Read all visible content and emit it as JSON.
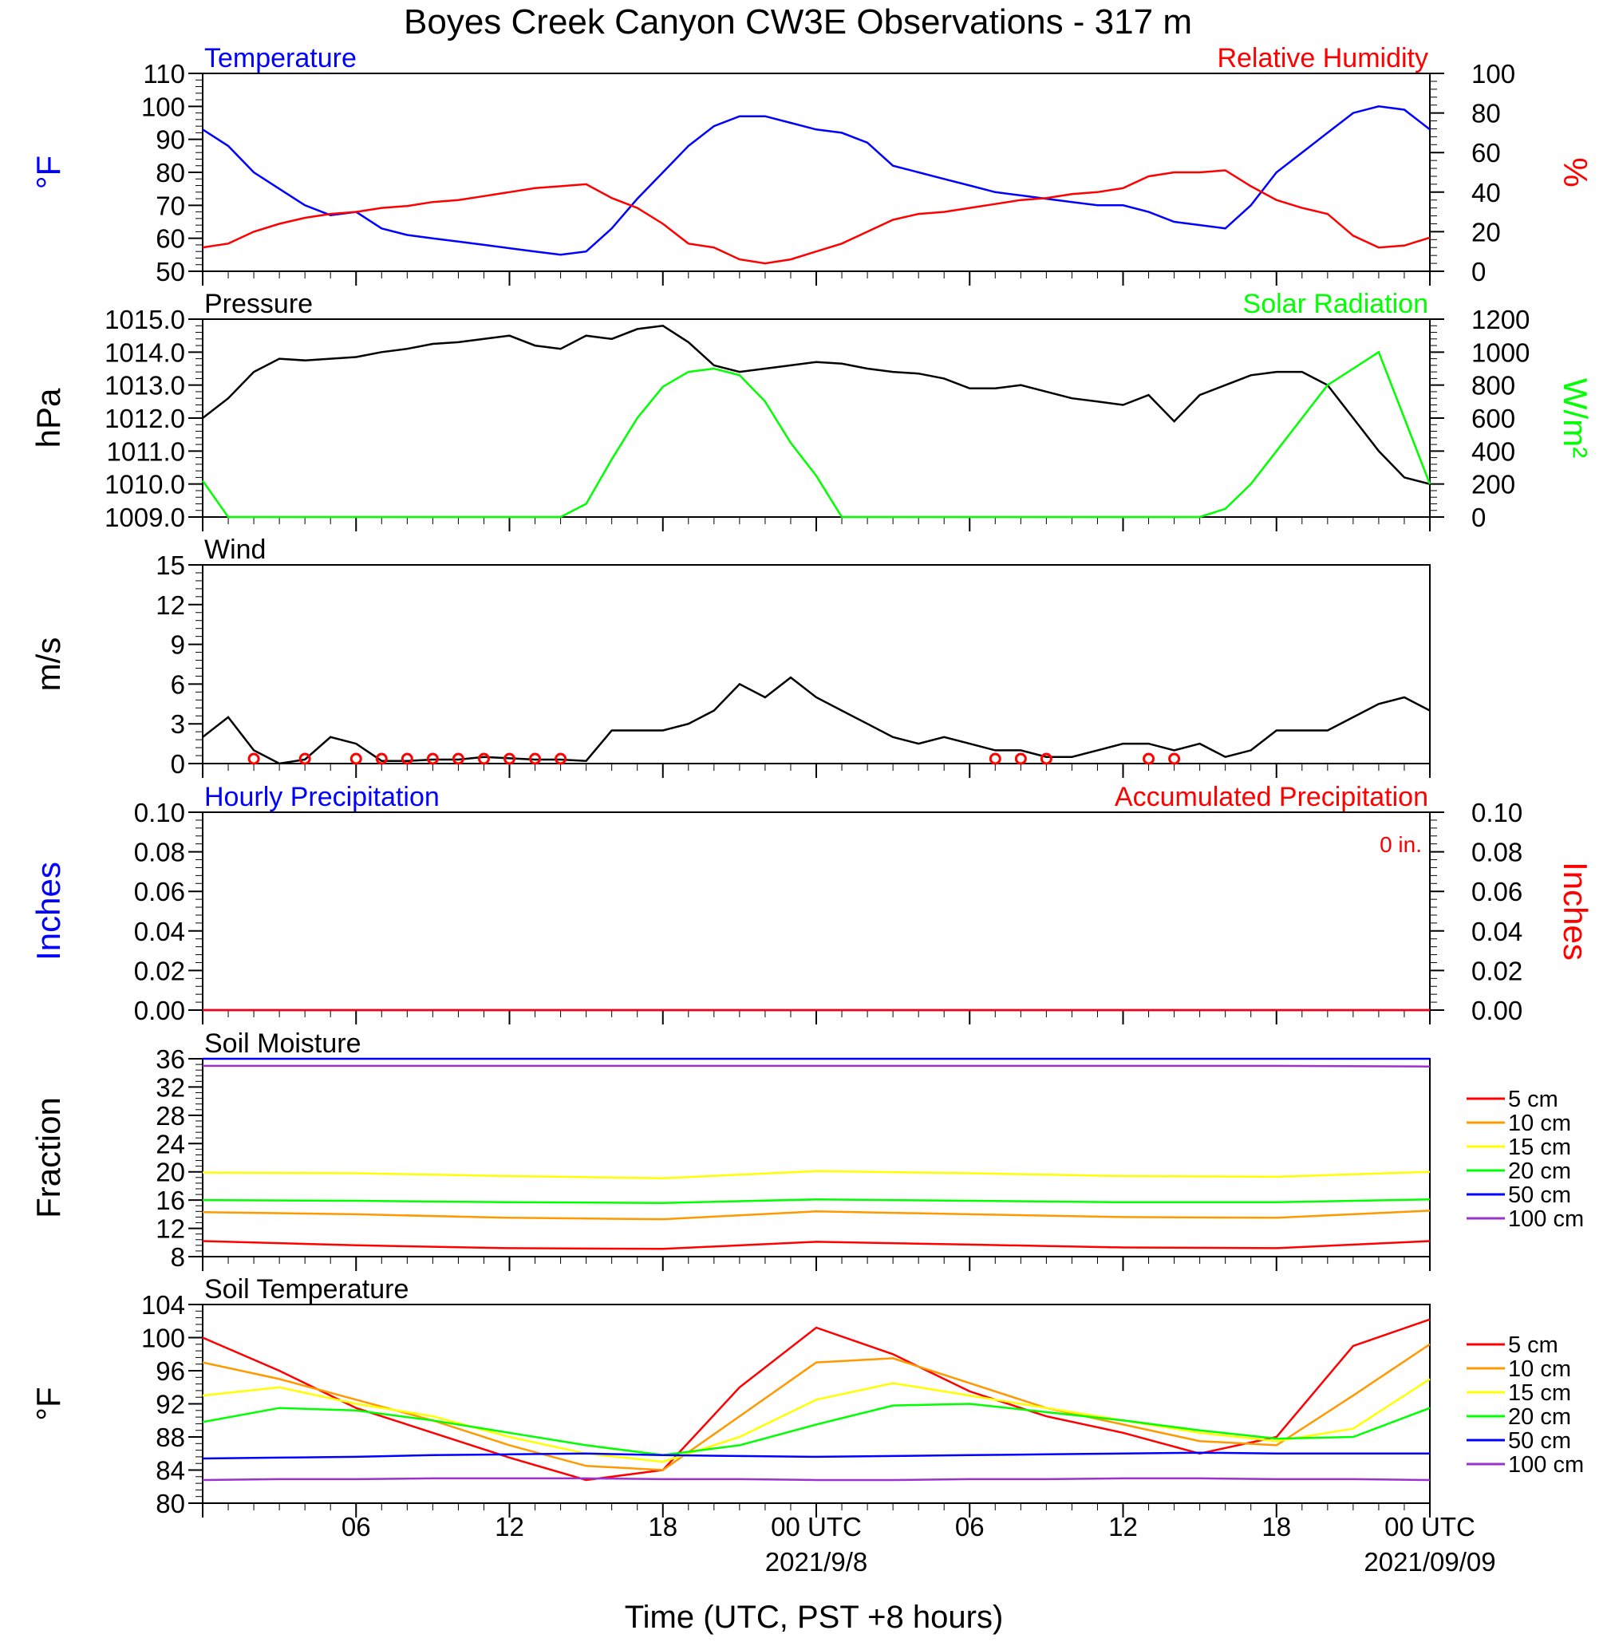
{
  "title": "Boyes Creek Canyon CW3E Observations - 317 m",
  "xlabel": "Time (UTC, PST +8 hours)",
  "x_ticks": [
    "06",
    "12",
    "18",
    "00 UTC",
    "06",
    "12",
    "18",
    "00 UTC"
  ],
  "x_dates": [
    "2021/9/8",
    "2021/09/09"
  ],
  "chart_data": [
    {
      "type": "line",
      "left_title": "Temperature",
      "right_title": "Relative Humidity",
      "ylabel_left": "°F",
      "ylabel_right": "%",
      "ylim_left": [
        50,
        110
      ],
      "ylim_right": [
        0,
        100
      ],
      "yticks_left": [
        "110",
        "100",
        "90",
        "80",
        "70",
        "60",
        "50"
      ],
      "yticks_right": [
        "100",
        "80",
        "60",
        "40",
        "20",
        "0"
      ],
      "x_hours": [
        0,
        1,
        2,
        3,
        4,
        5,
        6,
        7,
        8,
        9,
        10,
        11,
        12,
        13,
        14,
        15,
        16,
        17,
        18,
        19,
        20,
        21,
        22,
        23,
        24,
        25,
        26,
        27,
        28,
        29,
        30,
        31,
        32,
        33,
        34,
        35,
        36,
        37,
        38,
        39,
        40,
        41,
        42,
        43,
        44,
        45,
        46,
        47,
        48
      ],
      "series": [
        {
          "axis": "left",
          "color": "#0000ff",
          "values": [
            93,
            88,
            80,
            75,
            70,
            67,
            68,
            63,
            61,
            60,
            59,
            58,
            57,
            56,
            55,
            56,
            63,
            72,
            80,
            88,
            94,
            97,
            97,
            95,
            93,
            92,
            89,
            82,
            80,
            78,
            76,
            74,
            73,
            72,
            71,
            70,
            70,
            68,
            65,
            64,
            63,
            70,
            80,
            86,
            92,
            98,
            100,
            99,
            93
          ]
        },
        {
          "axis": "right",
          "color": "#ff0000",
          "values": [
            12,
            14,
            20,
            24,
            27,
            29,
            30,
            32,
            33,
            35,
            36,
            38,
            40,
            42,
            43,
            44,
            37,
            32,
            24,
            14,
            12,
            6,
            4,
            6,
            10,
            14,
            20,
            26,
            29,
            30,
            32,
            34,
            36,
            37,
            39,
            40,
            42,
            48,
            50,
            50,
            51,
            43,
            36,
            32,
            29,
            18,
            12,
            13,
            17
          ]
        }
      ]
    },
    {
      "type": "line",
      "left_title": "Pressure",
      "right_title": "Solar Radiation",
      "ylabel_left": "hPa",
      "ylabel_right": "W/m²",
      "ylim_left": [
        1009,
        1015
      ],
      "ylim_right": [
        0,
        1200
      ],
      "yticks_left": [
        "1015.0",
        "1014.0",
        "1013.0",
        "1012.0",
        "1011.0",
        "1010.0",
        "1009.0"
      ],
      "yticks_right": [
        "1200",
        "1000",
        "800",
        "600",
        "400",
        "200",
        "0"
      ],
      "x_hours": [
        0,
        1,
        2,
        3,
        4,
        5,
        6,
        7,
        8,
        9,
        10,
        11,
        12,
        13,
        14,
        15,
        16,
        17,
        18,
        19,
        20,
        21,
        22,
        23,
        24,
        25,
        26,
        27,
        28,
        29,
        30,
        31,
        32,
        33,
        34,
        35,
        36,
        37,
        38,
        39,
        40,
        41,
        42,
        43,
        44,
        45,
        46,
        47,
        48
      ],
      "series": [
        {
          "axis": "left",
          "color": "#000000",
          "values": [
            1012.0,
            1012.6,
            1013.4,
            1013.8,
            1013.75,
            1013.8,
            1013.85,
            1014.0,
            1014.1,
            1014.25,
            1014.3,
            1014.4,
            1014.5,
            1014.2,
            1014.1,
            1014.5,
            1014.4,
            1014.7,
            1014.8,
            1014.3,
            1013.6,
            1013.4,
            1013.5,
            1013.6,
            1013.7,
            1013.65,
            1013.5,
            1013.4,
            1013.35,
            1013.2,
            1012.9,
            1012.9,
            1013.0,
            1012.8,
            1012.6,
            1012.5,
            1012.4,
            1012.7,
            1011.9,
            1012.7,
            1013.0,
            1013.3,
            1013.4,
            1013.4,
            1013.0,
            1012.0,
            1011.0,
            1010.2,
            1010.0
          ]
        },
        {
          "axis": "right",
          "color": "#00ff00",
          "values": [
            220,
            0,
            0,
            0,
            0,
            0,
            0,
            0,
            0,
            0,
            0,
            0,
            0,
            0,
            0,
            80,
            350,
            600,
            790,
            880,
            900,
            860,
            700,
            450,
            250,
            0,
            0,
            0,
            0,
            0,
            0,
            0,
            0,
            0,
            0,
            0,
            0,
            0,
            0,
            0,
            50,
            200,
            400,
            600,
            800,
            900,
            1000,
            600,
            200
          ]
        }
      ]
    },
    {
      "type": "line",
      "left_title": "Wind",
      "ylabel_left": "m/s",
      "ylim_left": [
        0,
        15
      ],
      "yticks_left": [
        "15",
        "12",
        "9",
        "6",
        "3",
        "0"
      ],
      "x_hours": [
        0,
        1,
        2,
        3,
        4,
        5,
        6,
        7,
        8,
        9,
        10,
        11,
        12,
        13,
        14,
        15,
        16,
        17,
        18,
        19,
        20,
        21,
        22,
        23,
        24,
        25,
        26,
        27,
        28,
        29,
        30,
        31,
        32,
        33,
        34,
        35,
        36,
        37,
        38,
        39,
        40,
        41,
        42,
        43,
        44,
        45,
        46,
        47,
        48
      ],
      "series": [
        {
          "axis": "left",
          "color": "#000000",
          "values": [
            2,
            3.5,
            1,
            0,
            0.3,
            2,
            1.5,
            0.2,
            0.2,
            0.3,
            0.3,
            0.5,
            0.4,
            0.3,
            0.3,
            0.2,
            2.5,
            2.5,
            2.5,
            3,
            4,
            6,
            5,
            6.5,
            5,
            4,
            3,
            2,
            1.5,
            2,
            1.5,
            1,
            1,
            0.5,
            0.5,
            1,
            1.5,
            1.5,
            1,
            1.5,
            0.5,
            1,
            2.5,
            2.5,
            2.5,
            3.5,
            4.5,
            5,
            4
          ]
        }
      ],
      "calm_hours": [
        2,
        4,
        6,
        7,
        8,
        9,
        10,
        11,
        12,
        13,
        14,
        31,
        32,
        33,
        37,
        38
      ]
    },
    {
      "type": "line",
      "left_title": "Hourly Precipitation",
      "right_title": "Accumulated Precipitation",
      "annotation": "0 in.",
      "ylabel_left": "Inches",
      "ylabel_right": "Inches",
      "ylim_left": [
        0,
        0.1
      ],
      "ylim_right": [
        0,
        0.1
      ],
      "yticks_left": [
        "0.10",
        "0.08",
        "0.06",
        "0.04",
        "0.02",
        "0.00"
      ],
      "yticks_right": [
        "0.10",
        "0.08",
        "0.06",
        "0.04",
        "0.02",
        "0.00"
      ],
      "x_hours": [
        0,
        48
      ],
      "series": [
        {
          "axis": "left",
          "color": "#0000ff",
          "values": [
            0,
            0
          ]
        },
        {
          "axis": "right",
          "color": "#ff0000",
          "values": [
            0,
            0
          ]
        }
      ]
    },
    {
      "type": "line",
      "left_title": "Soil Moisture",
      "ylabel_left": "Fraction",
      "ylim_left": [
        8,
        36
      ],
      "yticks_left": [
        "36",
        "32",
        "28",
        "24",
        "20",
        "16",
        "12",
        "8"
      ],
      "legend": [
        "5 cm",
        "10 cm",
        "15 cm",
        "20 cm",
        "50 cm",
        "100 cm"
      ],
      "x_hours": [
        0,
        6,
        12,
        18,
        24,
        30,
        36,
        42,
        48
      ],
      "series": [
        {
          "name": "5 cm",
          "color": "#ff0000",
          "values": [
            10.2,
            9.6,
            9.2,
            9.1,
            10.1,
            9.7,
            9.3,
            9.2,
            10.2
          ]
        },
        {
          "name": "10 cm",
          "color": "#ff9900",
          "values": [
            14.3,
            14.0,
            13.5,
            13.3,
            14.4,
            14.0,
            13.6,
            13.5,
            14.5
          ]
        },
        {
          "name": "15 cm",
          "color": "#ffff00",
          "values": [
            19.9,
            19.8,
            19.4,
            19.1,
            20.1,
            19.8,
            19.4,
            19.3,
            20.0
          ]
        },
        {
          "name": "20 cm",
          "color": "#00ff00",
          "values": [
            16.0,
            15.9,
            15.7,
            15.6,
            16.1,
            15.9,
            15.7,
            15.7,
            16.1
          ]
        },
        {
          "name": "50 cm",
          "color": "#0000ff",
          "values": [
            36.0,
            36.0,
            36.0,
            36.0,
            36.0,
            36.0,
            36.0,
            36.0,
            36.0
          ]
        },
        {
          "name": "100 cm",
          "color": "#9933cc",
          "values": [
            35.0,
            35.0,
            35.0,
            35.0,
            35.0,
            35.0,
            35.0,
            35.0,
            34.9
          ]
        }
      ]
    },
    {
      "type": "line",
      "left_title": "Soil Temperature",
      "ylabel_left": "°F",
      "ylim_left": [
        80,
        104
      ],
      "yticks_left": [
        "104",
        "100",
        "96",
        "92",
        "88",
        "84",
        "80"
      ],
      "legend": [
        "5 cm",
        "10 cm",
        "15 cm",
        "20 cm",
        "50 cm",
        "100 cm"
      ],
      "x_hours": [
        0,
        3,
        6,
        9,
        12,
        15,
        18,
        21,
        24,
        27,
        30,
        33,
        36,
        39,
        42,
        45,
        48
      ],
      "series": [
        {
          "name": "5 cm",
          "color": "#ff0000",
          "values": [
            100,
            96,
            91.5,
            88.5,
            85.5,
            82.8,
            84,
            94,
            101.2,
            98,
            93.5,
            90.5,
            88.5,
            86,
            88,
            99,
            102.2
          ]
        },
        {
          "name": "10 cm",
          "color": "#ff9900",
          "values": [
            97,
            95,
            92.5,
            90,
            87,
            84.5,
            84,
            90.5,
            97,
            97.5,
            94.5,
            91.5,
            89.5,
            87.5,
            87,
            93,
            99.2
          ]
        },
        {
          "name": "15 cm",
          "color": "#ffff00",
          "values": [
            93,
            94,
            92,
            90.5,
            88,
            86,
            85,
            88,
            92.5,
            94.5,
            93,
            91.5,
            90,
            88.5,
            87.5,
            89,
            95
          ]
        },
        {
          "name": "20 cm",
          "color": "#00ff00",
          "values": [
            89.8,
            91.5,
            91.2,
            90,
            88.5,
            87,
            85.8,
            87,
            89.5,
            91.8,
            92,
            91,
            90,
            88.8,
            87.8,
            88,
            91.5
          ]
        },
        {
          "name": "50 cm",
          "color": "#0000ff",
          "values": [
            85.4,
            85.5,
            85.6,
            85.8,
            85.9,
            86,
            85.8,
            85.7,
            85.6,
            85.7,
            85.8,
            85.9,
            86,
            86.1,
            86,
            86,
            86
          ]
        },
        {
          "name": "100 cm",
          "color": "#9933cc",
          "values": [
            82.8,
            82.9,
            82.9,
            83,
            83,
            83,
            82.9,
            82.9,
            82.8,
            82.8,
            82.9,
            82.9,
            83,
            83,
            82.9,
            82.9,
            82.8
          ]
        }
      ]
    }
  ]
}
